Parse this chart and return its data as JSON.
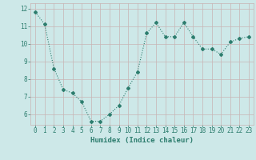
{
  "x": [
    0,
    1,
    2,
    3,
    4,
    5,
    6,
    7,
    8,
    9,
    10,
    11,
    12,
    13,
    14,
    15,
    16,
    17,
    18,
    19,
    20,
    21,
    22,
    23
  ],
  "y": [
    11.8,
    11.1,
    8.6,
    7.4,
    7.2,
    6.7,
    5.6,
    5.6,
    6.0,
    6.5,
    7.5,
    8.4,
    10.6,
    11.2,
    10.4,
    10.4,
    11.2,
    10.4,
    9.7,
    9.7,
    9.4,
    10.1,
    10.3,
    10.4
  ],
  "line_color": "#2d7d6e",
  "marker": "D",
  "marker_size": 2,
  "bg_color": "#cde8e8",
  "grid_color": "#c8b4b4",
  "xlabel": "Humidex (Indice chaleur)",
  "xlabel_color": "#2d7d6e",
  "tick_color": "#2d7d6e",
  "ylim": [
    5.4,
    12.3
  ],
  "xlim": [
    -0.5,
    23.5
  ],
  "yticks": [
    6,
    7,
    8,
    9,
    10,
    11,
    12
  ],
  "xticks": [
    0,
    1,
    2,
    3,
    4,
    5,
    6,
    7,
    8,
    9,
    10,
    11,
    12,
    13,
    14,
    15,
    16,
    17,
    18,
    19,
    20,
    21,
    22,
    23
  ],
  "xlabel_fontsize": 6.5,
  "tick_fontsize": 5.5,
  "linewidth": 0.8
}
